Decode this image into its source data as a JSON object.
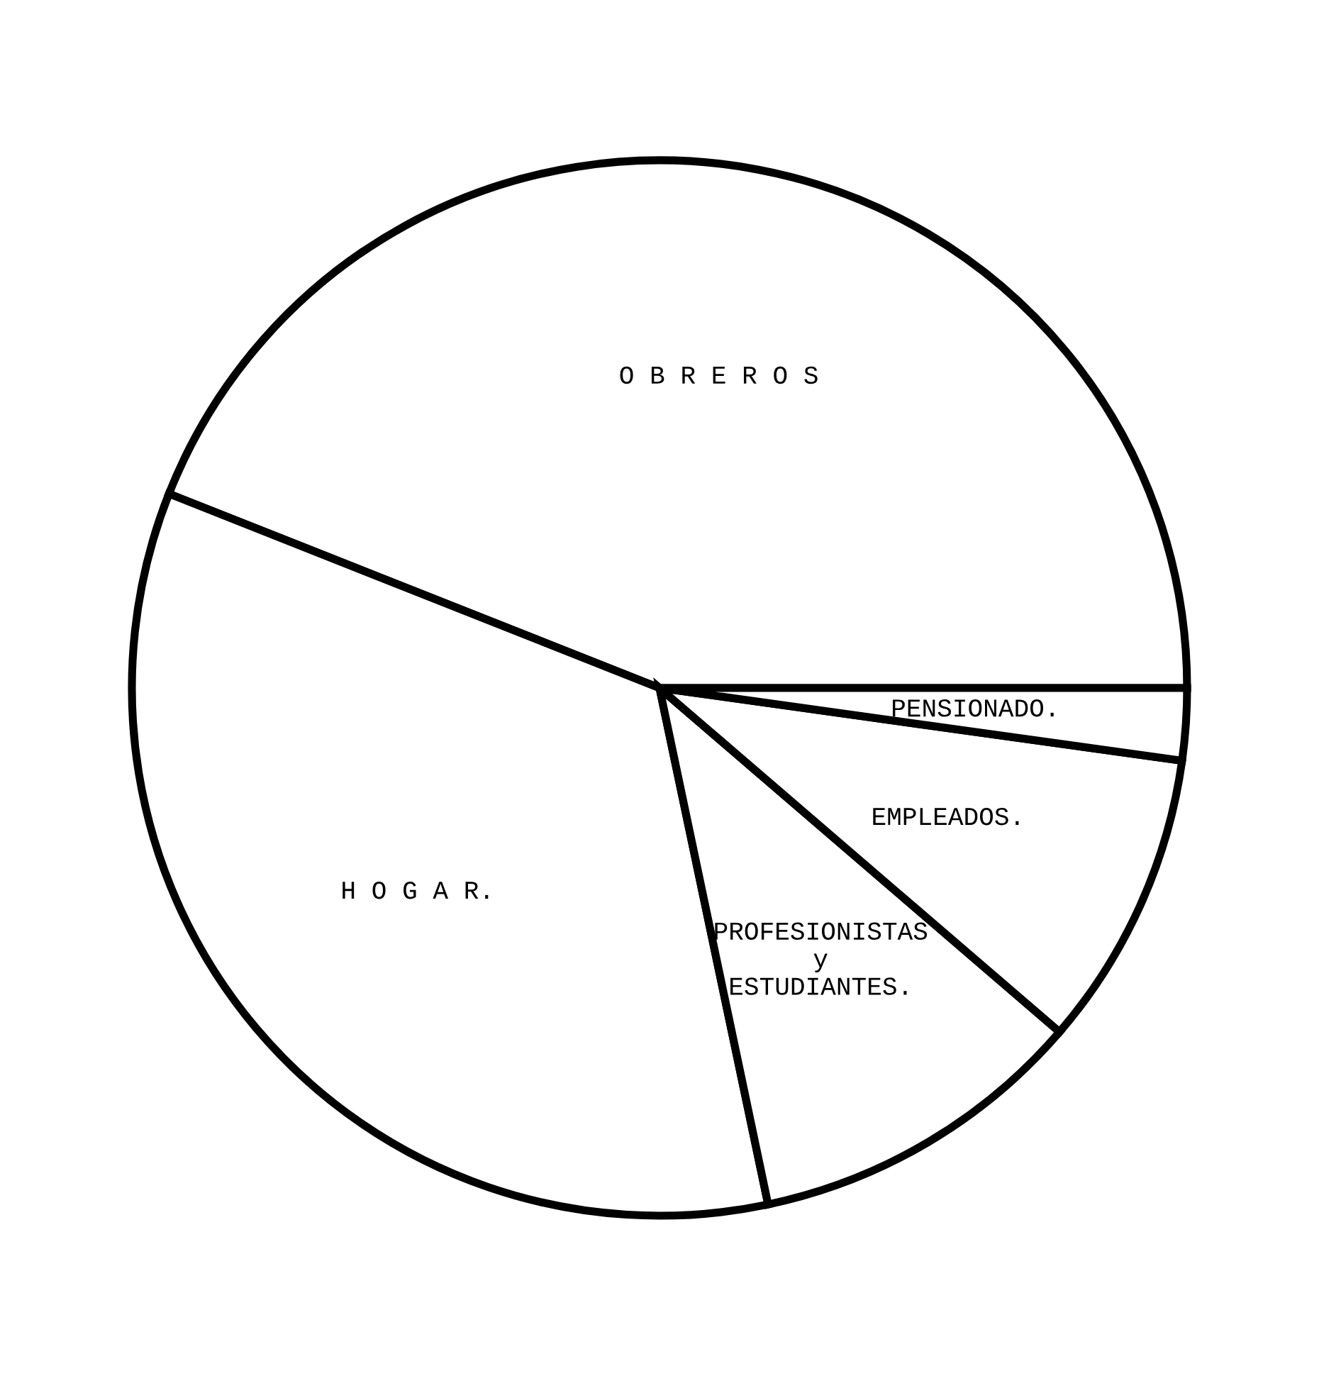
{
  "chart_data": {
    "type": "pie",
    "categories": [
      "O B R E R O S",
      "H O G A R.",
      "PROFESIONISTAS\ny\nESTUDIANTES.",
      "EMPLEADOS.",
      "PENSIONADO."
    ],
    "values": [
      44.0,
      34.3,
      10.4,
      9.1,
      2.2
    ],
    "colors": [
      "#ffffff",
      "#ffffff",
      "#ffffff",
      "#ffffff",
      "#ffffff"
    ]
  }
}
